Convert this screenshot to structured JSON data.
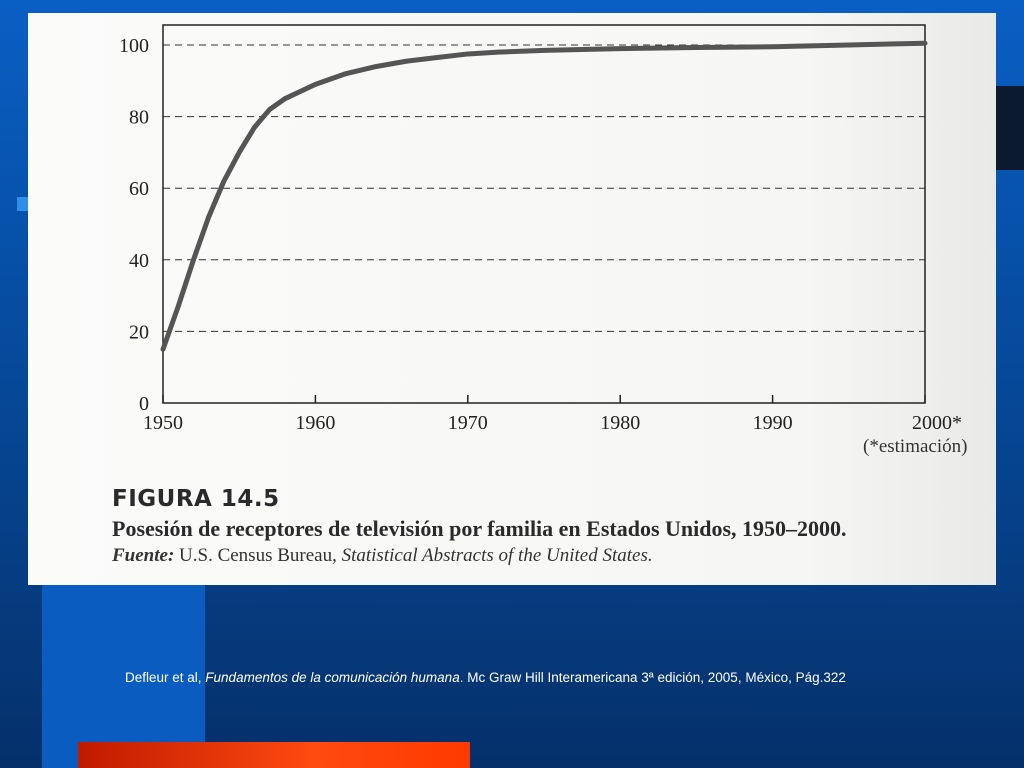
{
  "slide": {
    "citation_author": "Defleur et al, ",
    "citation_book": "Fundamentos de la comunicación humana",
    "citation_rest": ". Mc Graw Hill Interamericana 3ª edición, 2005, México, Pág.322"
  },
  "figure": {
    "label": "FIGURA 14.5",
    "caption": "Posesión de receptores de televisión por familia en Estados Unidos, 1950–2000.",
    "source_label": "Fuente:",
    "source_org": " U.S. Census Bureau, ",
    "source_pub": "Statistical Abstracts of the United States.",
    "estimate_note": "(*estimación)"
  },
  "colors": {
    "line": "#555555",
    "grid": "#333333",
    "axis": "#222222"
  },
  "chart_data": {
    "type": "line",
    "title": "",
    "xlabel": "",
    "ylabel": "",
    "xlim": [
      1950,
      2000
    ],
    "ylim": [
      0,
      100
    ],
    "grid": "horizontal dashed",
    "x_ticks": [
      1950,
      1960,
      1970,
      1980,
      1990,
      2000
    ],
    "x_tick_labels": [
      "1950",
      "1960",
      "1970",
      "1980",
      "1990",
      "2000*"
    ],
    "y_ticks": [
      0,
      20,
      40,
      60,
      80,
      100
    ],
    "y_tick_labels": [
      "0",
      "20",
      "40",
      "60",
      "80",
      "100"
    ],
    "series": [
      {
        "x": [
          1950,
          1951,
          1952,
          1953,
          1954,
          1955,
          1956,
          1957,
          1958,
          1960,
          1962,
          1964,
          1966,
          1968,
          1970,
          1972,
          1975,
          1980,
          1985,
          1990,
          1995,
          2000
        ],
        "values": [
          15,
          27,
          40,
          52,
          62,
          70,
          77,
          82,
          85,
          89,
          92,
          94,
          95.5,
          96.5,
          97.5,
          98,
          98.5,
          99,
          99.3,
          99.5,
          100,
          100.5
        ]
      }
    ]
  }
}
